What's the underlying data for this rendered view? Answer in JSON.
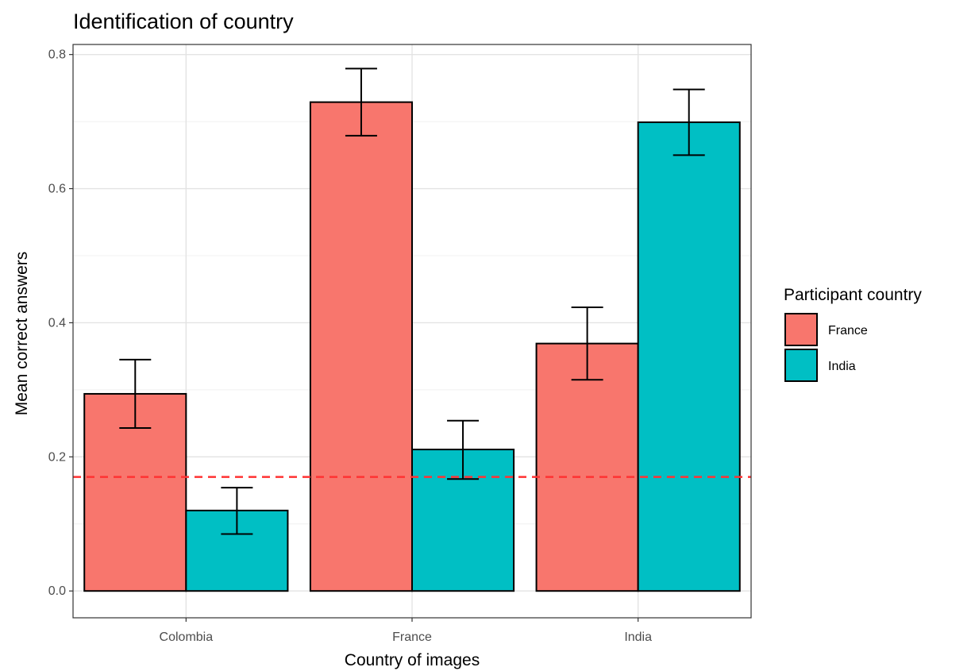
{
  "chart_data": {
    "type": "bar",
    "title": "Identification of country",
    "xlabel": "Country of images",
    "ylabel": "Mean correct answers",
    "categories": [
      "Colombia",
      "France",
      "India"
    ],
    "ylim": [
      -0.04,
      0.815
    ],
    "yticks": [
      "0.0",
      "0.2",
      "0.4",
      "0.6",
      "0.8"
    ],
    "grid": true,
    "legend": {
      "title": "Participant country",
      "placement": "right",
      "entries": [
        "France",
        "India"
      ]
    },
    "series": [
      {
        "name": "France",
        "color": "#F8766D",
        "values": [
          0.294,
          0.729,
          0.369
        ],
        "err_low": [
          0.243,
          0.679,
          0.315
        ],
        "err_high": [
          0.345,
          0.779,
          0.423
        ]
      },
      {
        "name": "India",
        "color": "#00BFC4",
        "values": [
          0.12,
          0.211,
          0.699
        ],
        "err_low": [
          0.085,
          0.167,
          0.65
        ],
        "err_high": [
          0.154,
          0.254,
          0.748
        ]
      }
    ],
    "reference_line": {
      "value": 0.17,
      "style": "dashed",
      "color": "#FF3333"
    }
  }
}
